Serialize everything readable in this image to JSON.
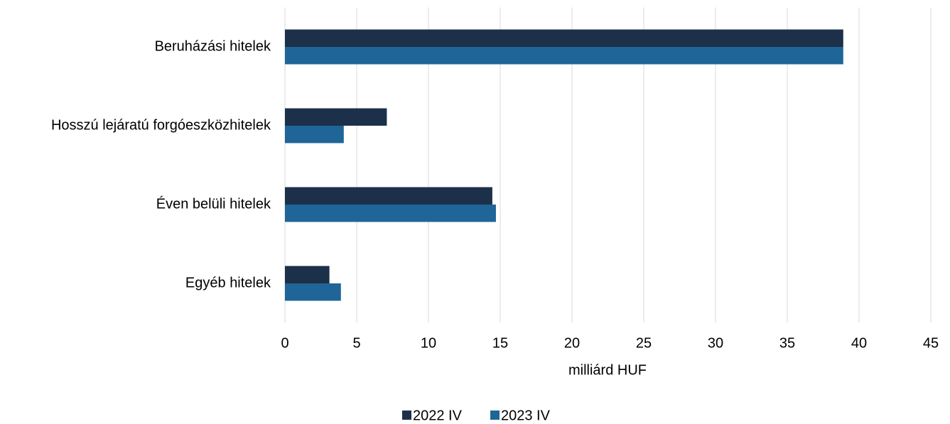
{
  "chart_data": {
    "type": "barh",
    "categories": [
      "Beruházási hitelek",
      "Hosszú lejáratú forgóeszközhitelek",
      "Éven belüli hitelek",
      "Egyéb hitelek"
    ],
    "series": [
      {
        "name": "2022 IV",
        "color": "#1c3049",
        "values": [
          38.9,
          7.1,
          14.45,
          3.1
        ]
      },
      {
        "name": "2023 IV",
        "color": "#1f6597",
        "values": [
          38.9,
          4.1,
          14.7,
          3.9
        ]
      }
    ],
    "xlabel": "milliárd HUF",
    "xlim": [
      0,
      45
    ],
    "xticks": [
      0,
      5,
      10,
      15,
      20,
      25,
      30,
      35,
      40,
      45
    ],
    "grid": true
  }
}
